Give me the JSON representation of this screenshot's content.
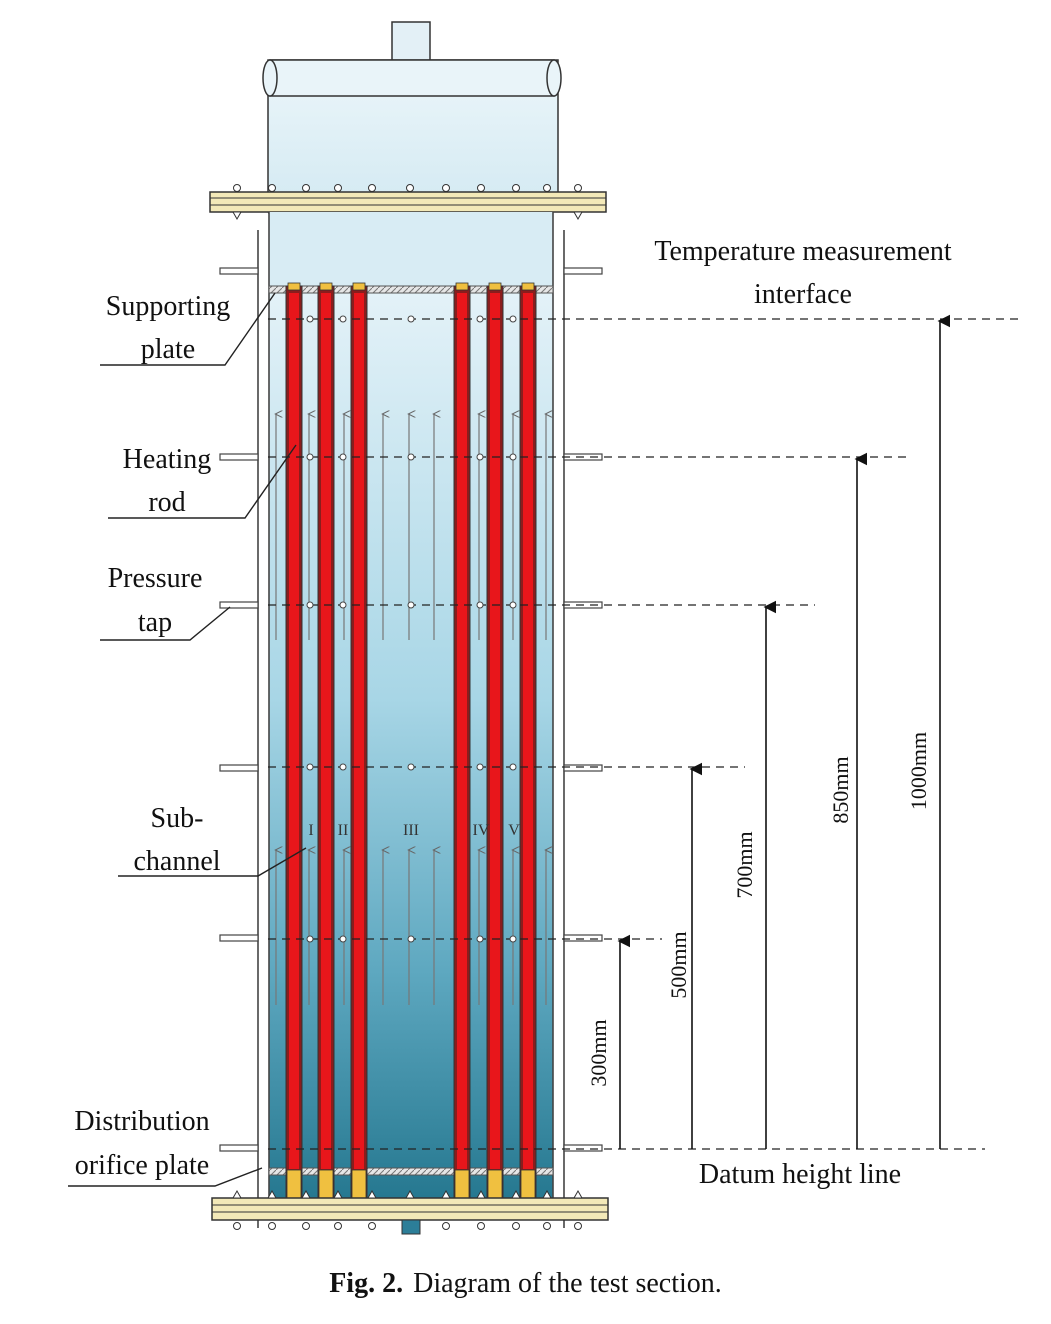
{
  "labels": {
    "supporting_plate": [
      "Supporting",
      "plate"
    ],
    "heating_rod": [
      "Heating",
      "rod"
    ],
    "pressure_tap": [
      "Pressure",
      "tap"
    ],
    "sub_channel": [
      "Sub-",
      "channel"
    ],
    "distribution_orifice_plate": [
      "Distribution",
      "orifice plate"
    ],
    "temperature_measurement_interface": [
      "Temperature measurement",
      "interface"
    ],
    "datum_height_line": "Datum height line"
  },
  "subchannels": [
    "I",
    "II",
    "III",
    "IV",
    "V"
  ],
  "dimensions": [
    "300mm",
    "500mm",
    "700mm",
    "850mm",
    "1000mm"
  ],
  "caption": {
    "number": "Fig. 2.",
    "text": "Diagram of the test section."
  },
  "colors": {
    "heating_rod": "#e8161b",
    "rod_sheath": "#8a1d1d",
    "rod_end": "#f0c040",
    "water_top": "#e3f1f8",
    "water_bottom": "#2c7e98",
    "flange": "#f3e9b8"
  }
}
